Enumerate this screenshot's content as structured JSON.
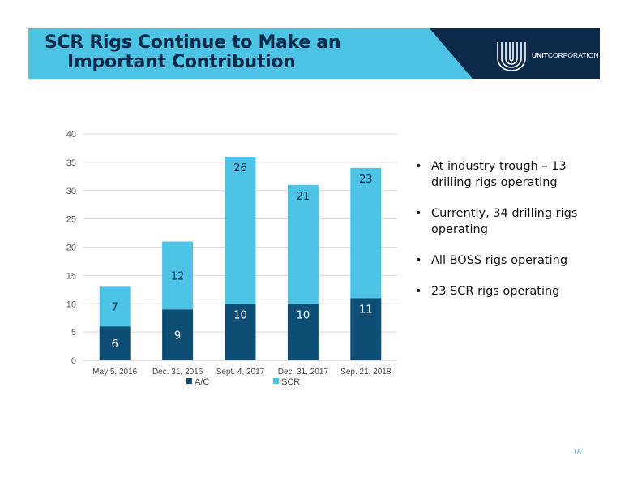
{
  "slide": {
    "title_line1": "SCR Rigs Continue to Make an",
    "title_line2": "Important Contribution",
    "logo_bold": "UNIT",
    "logo_rest": "CORPORATION",
    "page_number": "18",
    "bullets": [
      "At industry trough – 13 drilling rigs operating",
      "Currently, 34 drilling rigs operating",
      "All BOSS rigs operating",
      "23 SCR rigs operating"
    ],
    "colors": {
      "banner_light": "#4dc3e6",
      "banner_dark": "#0b2a4a"
    }
  },
  "chart_data": {
    "type": "bar",
    "stacked": true,
    "categories": [
      "May 5, 2016",
      "Dec. 31, 2016",
      "Sept. 4, 2017",
      "Dec. 31, 2017",
      "Sep. 21, 2018"
    ],
    "series": [
      {
        "name": "A/C",
        "values": [
          6,
          9,
          10,
          10,
          11
        ],
        "color": "#0e4d74"
      },
      {
        "name": "SCR",
        "values": [
          7,
          12,
          26,
          21,
          23
        ],
        "color": "#4dc3e6"
      }
    ],
    "ylim": [
      0,
      40
    ],
    "yticks": [
      0,
      5,
      10,
      15,
      20,
      25,
      30,
      35,
      40
    ],
    "grid": true,
    "legend_position": "bottom"
  }
}
